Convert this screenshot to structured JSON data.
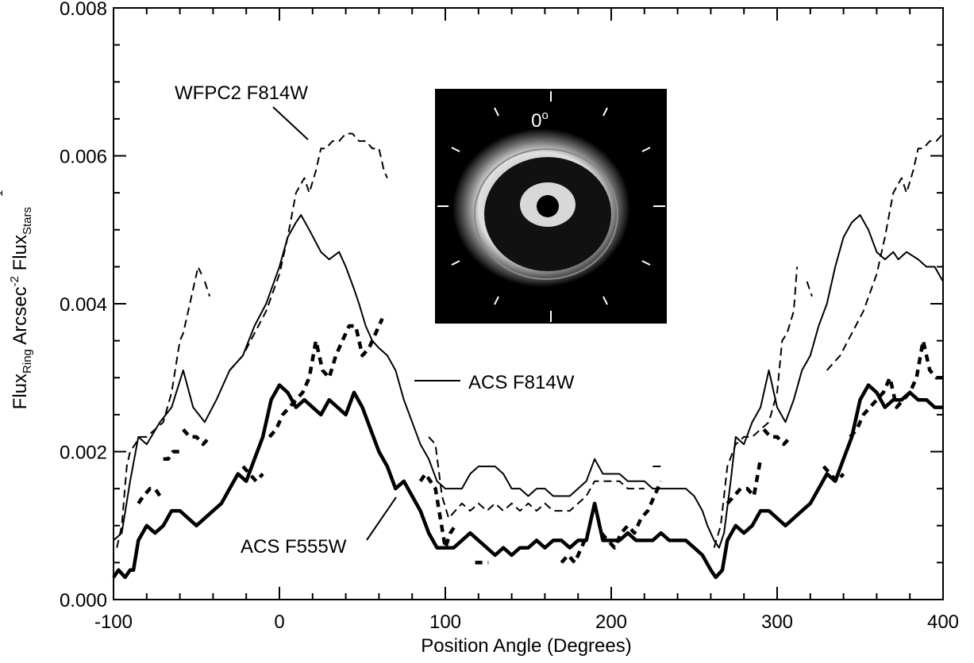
{
  "chart_data": {
    "type": "line",
    "xlabel": "Position Angle (Degrees)",
    "ylabel": {
      "part1": "Flux",
      "part1_sub": "Ring",
      "part2": " Arcsec",
      "part2_sup": "-2",
      "part3": " Flux",
      "part3_sub": "Stars",
      "part3_sup": "-1"
    },
    "xlim": [
      -100,
      400
    ],
    "ylim": [
      0.0,
      0.008
    ],
    "x_ticks": [
      -100,
      0,
      100,
      200,
      300,
      400
    ],
    "x_tick_labels": [
      "-100",
      "0",
      "100",
      "200",
      "300",
      "400"
    ],
    "y_ticks": [
      0.0,
      0.002,
      0.004,
      0.006,
      0.008
    ],
    "y_tick_labels": [
      "0.000",
      "0.002",
      "0.004",
      "0.006",
      "0.008"
    ],
    "legend": "none",
    "grid": false,
    "annotations": [
      {
        "text": "WFPC2 F814W",
        "series": "WFPC2 F814W"
      },
      {
        "text": "ACS F814W",
        "series": "ACS F814W"
      },
      {
        "text": "ACS F555W",
        "series": "ACS F555W"
      }
    ],
    "inset": {
      "label": "0",
      "label_sup": "o",
      "description": "ring image"
    },
    "series": [
      {
        "name": "ACS F814W",
        "style": "solid-thin",
        "x": [
          -100,
          -95,
          -90,
          -85,
          -80,
          -72,
          -65,
          -58,
          -52,
          -45,
          -38,
          -30,
          -22,
          -15,
          -8,
          0,
          5,
          10,
          13,
          18,
          25,
          30,
          36,
          40,
          45,
          48,
          52,
          56,
          60,
          65,
          70,
          75,
          80,
          85,
          90,
          95,
          100,
          105,
          110,
          115,
          120,
          125,
          130,
          135,
          140,
          145,
          150,
          155,
          160,
          165,
          170,
          175,
          180,
          185,
          190,
          195,
          200,
          205,
          210,
          215,
          220,
          225,
          230,
          235,
          240,
          245,
          250,
          255,
          258,
          262,
          265,
          268,
          272,
          275,
          280,
          285,
          290,
          295,
          300,
          305,
          310,
          315,
          320,
          325,
          330,
          335,
          340,
          345,
          350,
          355,
          360,
          365,
          370,
          373,
          378,
          385,
          390,
          395,
          400
        ],
        "y": [
          0.0008,
          0.0009,
          0.0016,
          0.0022,
          0.0021,
          0.0024,
          0.0026,
          0.0031,
          0.0026,
          0.0024,
          0.0027,
          0.0031,
          0.0033,
          0.0037,
          0.004,
          0.0045,
          0.0049,
          0.0051,
          0.0052,
          0.005,
          0.0047,
          0.0046,
          0.0047,
          0.0045,
          0.0042,
          0.004,
          0.0037,
          0.0035,
          0.0034,
          0.0033,
          0.0031,
          0.0027,
          0.0024,
          0.0021,
          0.0019,
          0.0016,
          0.0015,
          0.0015,
          0.0015,
          0.0017,
          0.0018,
          0.0018,
          0.0018,
          0.0017,
          0.0015,
          0.0015,
          0.0014,
          0.0015,
          0.0015,
          0.0014,
          0.0014,
          0.0014,
          0.0015,
          0.0016,
          0.0019,
          0.0017,
          0.0017,
          0.0017,
          0.0016,
          0.0016,
          0.0016,
          0.0015,
          0.0015,
          0.0015,
          0.0015,
          0.0015,
          0.0014,
          0.0012,
          0.001,
          0.0008,
          0.0007,
          0.0009,
          0.0016,
          0.0022,
          0.0021,
          0.0024,
          0.0026,
          0.0031,
          0.0026,
          0.0024,
          0.0027,
          0.0031,
          0.0033,
          0.0037,
          0.004,
          0.0045,
          0.0049,
          0.0051,
          0.0052,
          0.005,
          0.0047,
          0.0046,
          0.0047,
          0.0046,
          0.0047,
          0.0046,
          0.0045,
          0.0045,
          0.0043
        ]
      },
      {
        "name": "ACS F555W",
        "style": "solid-thick",
        "x": [
          -100,
          -97,
          -93,
          -90,
          -88,
          -85,
          -80,
          -75,
          -70,
          -65,
          -60,
          -55,
          -50,
          -45,
          -40,
          -35,
          -30,
          -25,
          -20,
          -15,
          -10,
          -5,
          0,
          5,
          10,
          15,
          20,
          25,
          30,
          35,
          40,
          45,
          50,
          55,
          60,
          65,
          70,
          75,
          80,
          85,
          90,
          95,
          100,
          105,
          110,
          115,
          120,
          125,
          130,
          135,
          140,
          145,
          150,
          155,
          160,
          165,
          170,
          175,
          180,
          185,
          190,
          195,
          200,
          205,
          210,
          215,
          220,
          225,
          230,
          235,
          240,
          245,
          250,
          255,
          260,
          263,
          267,
          270,
          275,
          280,
          285,
          290,
          295,
          300,
          305,
          310,
          315,
          320,
          325,
          330,
          335,
          340,
          345,
          350,
          355,
          360,
          365,
          370,
          375,
          380,
          385,
          390,
          395,
          400
        ],
        "y": [
          0.0003,
          0.0004,
          0.0003,
          0.0004,
          0.0004,
          0.0008,
          0.001,
          0.0009,
          0.001,
          0.0012,
          0.0012,
          0.0011,
          0.001,
          0.0011,
          0.0012,
          0.0013,
          0.0015,
          0.0017,
          0.0016,
          0.0019,
          0.0022,
          0.0027,
          0.0029,
          0.0028,
          0.0026,
          0.0027,
          0.0026,
          0.0025,
          0.0027,
          0.0026,
          0.0025,
          0.0028,
          0.0026,
          0.0023,
          0.002,
          0.0018,
          0.0015,
          0.0016,
          0.0014,
          0.0012,
          0.0009,
          0.0007,
          0.0007,
          0.0007,
          0.0008,
          0.0009,
          0.0008,
          0.0007,
          0.0006,
          0.0007,
          0.0006,
          0.0007,
          0.0007,
          0.0008,
          0.0007,
          0.0008,
          0.0008,
          0.0007,
          0.0008,
          0.0008,
          0.0013,
          0.0008,
          0.0008,
          0.0008,
          0.0009,
          0.0008,
          0.0008,
          0.0008,
          0.0009,
          0.0008,
          0.0008,
          0.0008,
          0.0007,
          0.0006,
          0.0004,
          0.0003,
          0.0004,
          0.0008,
          0.001,
          0.0009,
          0.001,
          0.0012,
          0.0012,
          0.0011,
          0.001,
          0.0011,
          0.0012,
          0.0013,
          0.0015,
          0.0017,
          0.0016,
          0.0019,
          0.0022,
          0.0027,
          0.0029,
          0.0028,
          0.0026,
          0.0027,
          0.0027,
          0.0028,
          0.0027,
          0.0027,
          0.0026,
          0.0026
        ]
      },
      {
        "name": "WFPC2 F814W",
        "style": "dashed-thin",
        "segments": [
          {
            "x": [
              -98,
              -95,
              -92,
              -90,
              -87,
              -84,
              -80,
              -75,
              -70,
              -65,
              -60,
              -58,
              -55,
              -52,
              -49,
              -47
            ],
            "y": [
              0.0007,
              0.001,
              0.0018,
              0.002,
              0.0021,
              0.0022,
              0.0022,
              0.0023,
              0.0024,
              0.0028,
              0.0035,
              0.0036,
              0.0039,
              0.0042,
              0.0045,
              0.0044
            ]
          },
          {
            "x": [
              -45,
              -42
            ],
            "y": [
              0.0043,
              0.0041
            ]
          },
          {
            "x": [
              -30,
              -22,
              -15,
              -8,
              0,
              5,
              10,
              15,
              18,
              22,
              25,
              28,
              32,
              36,
              40,
              44,
              48,
              52,
              56,
              60,
              63,
              65
            ],
            "y": [
              0.0031,
              0.0033,
              0.0036,
              0.0039,
              0.0044,
              0.0049,
              0.0055,
              0.0057,
              0.0055,
              0.0058,
              0.0061,
              0.0061,
              0.0062,
              0.0062,
              0.0063,
              0.0063,
              0.0062,
              0.0062,
              0.0061,
              0.0061,
              0.0058,
              0.0057
            ]
          },
          {
            "x": [
              90,
              94,
              98,
              102,
              106,
              110,
              115,
              120,
              125,
              130,
              135,
              140,
              145,
              150,
              155,
              160,
              165,
              170,
              175,
              180,
              185,
              190,
              195,
              200,
              205,
              210,
              215,
              220
            ],
            "y": [
              0.0022,
              0.0021,
              0.0014,
              0.0011,
              0.0012,
              0.0013,
              0.0012,
              0.0013,
              0.0012,
              0.0013,
              0.0012,
              0.0013,
              0.0012,
              0.0013,
              0.0012,
              0.0013,
              0.0012,
              0.0012,
              0.0012,
              0.0013,
              0.0014,
              0.0016,
              0.0016,
              0.0016,
              0.0016,
              0.0015,
              0.0015,
              0.0015
            ]
          },
          {
            "x": [
              225,
              228,
              232
            ],
            "y": [
              0.0018,
              0.0018,
              0.0018
            ]
          },
          {
            "x": [
              262,
              266,
              270,
              275,
              280,
              285,
              290,
              295,
              300,
              303,
              306,
              310,
              312
            ],
            "y": [
              0.0007,
              0.001,
              0.0018,
              0.0021,
              0.0022,
              0.0022,
              0.0023,
              0.0024,
              0.0028,
              0.0035,
              0.0036,
              0.0039,
              0.0045
            ]
          },
          {
            "x": [
              318,
              321
            ],
            "y": [
              0.0043,
              0.0041
            ]
          },
          {
            "x": [
              330,
              338,
              345,
              352,
              360,
              365,
              370,
              375,
              378,
              382,
              385,
              388,
              392,
              396,
              400
            ],
            "y": [
              0.0031,
              0.0033,
              0.0036,
              0.0039,
              0.0044,
              0.0049,
              0.0055,
              0.0057,
              0.0055,
              0.0058,
              0.0061,
              0.0061,
              0.0062,
              0.0062,
              0.0063
            ]
          }
        ]
      },
      {
        "name": "WFPC2 F555W",
        "style": "dashed-thick",
        "segments": [
          {
            "x": [
              -85,
              -82,
              -78,
              -75,
              -72
            ],
            "y": [
              0.0013,
              0.0014,
              0.0015,
              0.0015,
              0.0014
            ]
          },
          {
            "x": [
              -70,
              -67,
              -64,
              -60
            ],
            "y": [
              0.0019,
              0.0019,
              0.002,
              0.002
            ]
          },
          {
            "x": [
              -58,
              -54,
              -50,
              -46,
              -42
            ],
            "y": [
              0.0023,
              0.0022,
              0.0022,
              0.0021,
              0.0022
            ]
          },
          {
            "x": [
              -22,
              -18,
              -14,
              -10
            ],
            "y": [
              0.0018,
              0.0017,
              0.0016,
              0.0017
            ]
          },
          {
            "x": [
              -6,
              -2,
              2,
              6,
              10,
              14,
              18,
              22,
              26,
              30,
              34,
              38,
              42,
              46,
              50,
              54,
              58,
              62
            ],
            "y": [
              0.0022,
              0.0023,
              0.0025,
              0.0026,
              0.0027,
              0.0028,
              0.003,
              0.0035,
              0.0031,
              0.003,
              0.0033,
              0.0035,
              0.0037,
              0.0037,
              0.0033,
              0.0034,
              0.0036,
              0.0038
            ]
          },
          {
            "x": [
              85,
              88,
              91,
              94,
              97,
              100,
              103,
              106
            ],
            "y": [
              0.0016,
              0.0017,
              0.0016,
              0.0015,
              0.0011,
              0.0007,
              0.0009,
              0.001
            ]
          },
          {
            "x": [
              118,
              122,
              126
            ],
            "y": [
              0.0005,
              0.0005,
              0.0005
            ]
          },
          {
            "x": [
              170,
              174,
              178,
              182,
              186
            ],
            "y": [
              0.0005,
              0.0006,
              0.0005,
              0.0007,
              0.0009
            ]
          },
          {
            "x": [
              194,
              198,
              202,
              206,
              210,
              214,
              218,
              222,
              226,
              230
            ],
            "y": [
              0.0009,
              0.0008,
              0.0007,
              0.0009,
              0.001,
              0.0009,
              0.0011,
              0.0012,
              0.0014,
              0.0016
            ]
          },
          {
            "x": [
              270,
              274,
              278,
              282,
              286,
              290
            ],
            "y": [
              0.0013,
              0.0014,
              0.0015,
              0.0015,
              0.0014,
              0.0019
            ]
          },
          {
            "x": [
              292,
              296,
              300,
              304,
              308
            ],
            "y": [
              0.0023,
              0.0022,
              0.0022,
              0.0021,
              0.0022
            ]
          },
          {
            "x": [
              328,
              332,
              336,
              340
            ],
            "y": [
              0.0018,
              0.0017,
              0.0016,
              0.0017
            ]
          },
          {
            "x": [
              344,
              348,
              352,
              356,
              360,
              364,
              368,
              372,
              376,
              380,
              384,
              388,
              392,
              396,
              400
            ],
            "y": [
              0.0022,
              0.0023,
              0.0025,
              0.0026,
              0.0027,
              0.0028,
              0.003,
              0.0026,
              0.0027,
              0.0028,
              0.003,
              0.0035,
              0.0031,
              0.003,
              0.003
            ]
          }
        ]
      }
    ]
  }
}
